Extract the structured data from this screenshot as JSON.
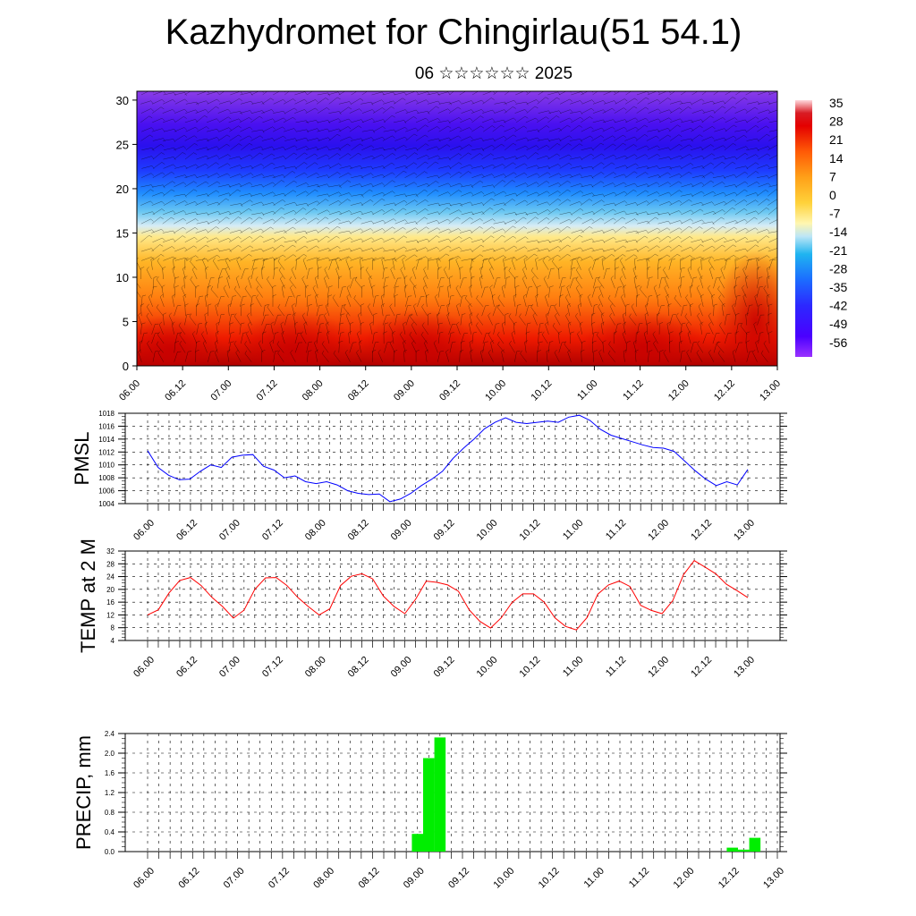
{
  "title": "Kazhydromet for Chingirlau(51 54.1)",
  "subtitle": "06 ☆☆☆☆☆☆ 2025",
  "time_labels": [
    "06.00",
    "06.12",
    "07.00",
    "07.12",
    "08.00",
    "08.12",
    "09.00",
    "09.12",
    "10.00",
    "10.12",
    "11.00",
    "11.12",
    "12.00",
    "12.12",
    "13.00"
  ],
  "chart_data": [
    {
      "type": "heatmap",
      "description_type": "vertical cross-section of temperature with wind barbs",
      "x_ticks": [
        "06.00",
        "06.12",
        "07.00",
        "07.12",
        "08.00",
        "08.12",
        "09.00",
        "09.12",
        "10.00",
        "10.12",
        "11.00",
        "11.12",
        "12.00",
        "12.12",
        "13.00"
      ],
      "y_ticks": [
        0,
        5,
        10,
        15,
        20,
        25,
        30
      ],
      "ylim": [
        0,
        31
      ],
      "colorbar_labels": [
        "35",
        "28",
        "21",
        "14",
        "7",
        "0",
        "-7",
        "-14",
        "-21",
        "-28",
        "-35",
        "-42",
        "-49",
        "-56"
      ],
      "colorbar_range": [
        -63,
        42
      ],
      "colormap": [
        "#8a2be2",
        "#3c14ff",
        "#2050ff",
        "#30b0ff",
        "#bfe4f5",
        "#fff3b0",
        "#ffd040",
        "#ffb020",
        "#ff8010",
        "#ff3c00",
        "#e80000",
        "#b00000",
        "#ffd8d8"
      ]
    },
    {
      "type": "line",
      "ylabel": "PMSL",
      "ylim": [
        1004,
        1018
      ],
      "y_ticks": [
        1004,
        1006,
        1008,
        1010,
        1012,
        1014,
        1016,
        1018
      ],
      "x_ticks": [
        "06.00",
        "06.12",
        "07.00",
        "07.12",
        "08.00",
        "08.12",
        "09.00",
        "09.12",
        "10.00",
        "10.12",
        "11.00",
        "11.12",
        "12.00",
        "12.12",
        "13.00"
      ],
      "color": "#0000ff",
      "values": [
        1012.2,
        1009.6,
        1008.4,
        1007.7,
        1007.8,
        1009.0,
        1010.0,
        1009.6,
        1011.2,
        1011.5,
        1011.6,
        1009.8,
        1009.2,
        1008.0,
        1008.3,
        1007.4,
        1007.1,
        1007.4,
        1006.9,
        1006.0,
        1005.6,
        1005.4,
        1005.5,
        1004.3,
        1004.7,
        1005.6,
        1006.8,
        1007.8,
        1009.0,
        1011.0,
        1012.6,
        1014.0,
        1015.6,
        1016.6,
        1017.3,
        1016.6,
        1016.4,
        1016.6,
        1016.8,
        1016.6,
        1017.4,
        1017.7,
        1016.9,
        1015.5,
        1014.6,
        1014.1,
        1013.6,
        1013.1,
        1012.7,
        1012.6,
        1012.1,
        1010.6,
        1009.1,
        1007.8,
        1006.8,
        1007.4,
        1006.9,
        1009.3
      ]
    },
    {
      "type": "line",
      "ylabel": "TEMP at 2 M",
      "ylim": [
        4,
        32
      ],
      "y_ticks": [
        4,
        8,
        12,
        16,
        20,
        24,
        28,
        32
      ],
      "x_ticks": [
        "06.00",
        "06.12",
        "07.00",
        "07.12",
        "08.00",
        "08.12",
        "09.00",
        "09.12",
        "10.00",
        "10.12",
        "11.00",
        "11.12",
        "12.00",
        "12.12",
        "13.00"
      ],
      "color": "#ff0000",
      "values": [
        12,
        13.6,
        18.9,
        22.8,
        23.7,
        21.2,
        17.5,
        14.6,
        11.0,
        13.5,
        20,
        23.6,
        23.7,
        21.2,
        17.5,
        14.6,
        12.0,
        13.9,
        21.2,
        24.1,
        24.9,
        23.3,
        17.9,
        14.6,
        12.4,
        16.9,
        22.6,
        22.2,
        21.4,
        19.4,
        13.6,
        10.0,
        7.9,
        11.1,
        15.9,
        18.6,
        18.6,
        16.0,
        11.1,
        8.4,
        7.3,
        11.2,
        18.5,
        21.4,
        22.6,
        20.9,
        15.0,
        13.4,
        12.4,
        16.5,
        24.6,
        29.0,
        27.0,
        24.9,
        21.6,
        19.6,
        17.4
      ]
    },
    {
      "type": "bar",
      "ylabel": "PRECIP, mm",
      "ylim": [
        0,
        2.4
      ],
      "y_ticks": [
        "0.0",
        "0.4",
        "0.8",
        "1.2",
        "1.6",
        "2.0",
        "2.4"
      ],
      "x_ticks": [
        "06.00",
        "06.12",
        "07.00",
        "07.12",
        "08.00",
        "08.12",
        "09.00",
        "09.12",
        "10.00",
        "10.12",
        "11.00",
        "11.12",
        "12.00",
        "12.12",
        "13.00"
      ],
      "color": "#00ee00",
      "step_hours": 3,
      "values": [
        0,
        0,
        0,
        0,
        0,
        0,
        0,
        0,
        0,
        0,
        0,
        0,
        0,
        0,
        0,
        0,
        0,
        0,
        0,
        0,
        0,
        0,
        0,
        0,
        0.36,
        1.9,
        2.32,
        0,
        0,
        0,
        0,
        0,
        0,
        0,
        0,
        0,
        0,
        0,
        0,
        0,
        0,
        0,
        0,
        0,
        0,
        0,
        0,
        0,
        0,
        0,
        0,
        0,
        0.08,
        0.04,
        0.28,
        0,
        0
      ]
    }
  ]
}
